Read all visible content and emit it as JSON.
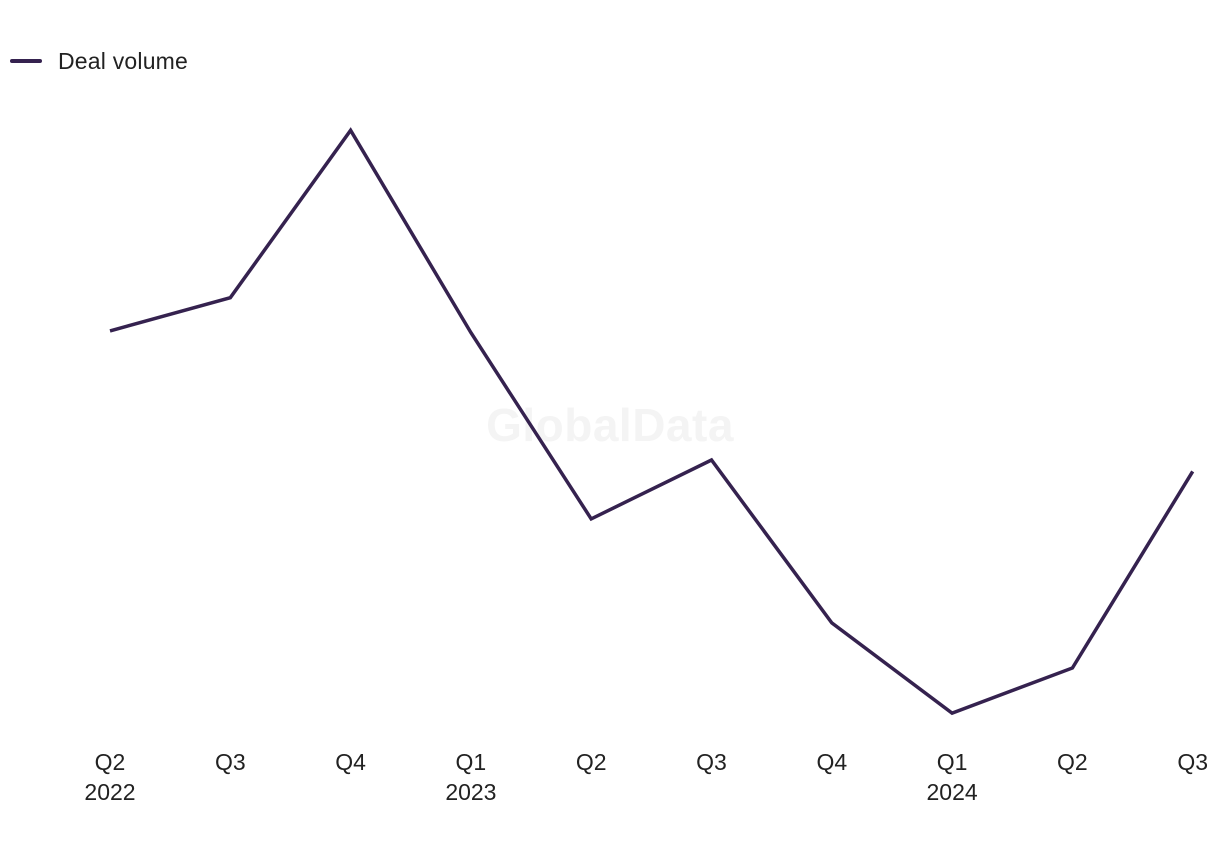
{
  "chart_data": {
    "type": "line",
    "legend_position": "top-left",
    "grid": false,
    "watermark": "GlobalData",
    "categories": [
      "Q2",
      "Q3",
      "Q4",
      "Q1",
      "Q2",
      "Q3",
      "Q4",
      "Q1",
      "Q2",
      "Q3"
    ],
    "category_years": [
      "2022",
      "",
      "",
      "2023",
      "",
      "",
      "",
      "2024",
      "",
      ""
    ],
    "series": [
      {
        "name": "Deal volume",
        "color": "#35224f",
        "values": [
          69.5,
          75.3,
          104.6,
          69.2,
          36.6,
          46.9,
          18.4,
          2.6,
          10.5,
          44.9
        ]
      }
    ],
    "ylim": [
      0,
      105
    ]
  }
}
